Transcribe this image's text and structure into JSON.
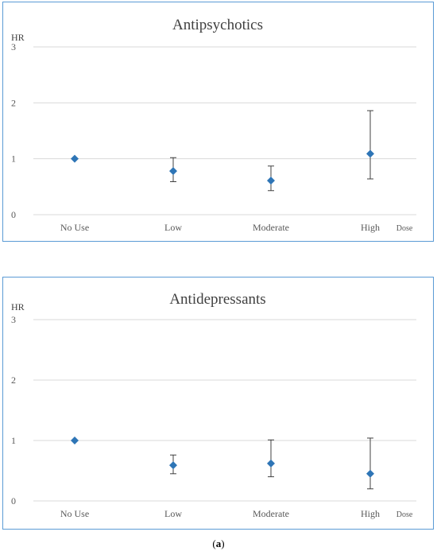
{
  "chart_data": [
    {
      "type": "scatter",
      "title": "Antipsychotics",
      "ylabel": "HR",
      "xlabel": "Dose",
      "categories": [
        "No Use",
        "Low",
        "Moderate",
        "High"
      ],
      "ylim": [
        0,
        3
      ],
      "yticks": [
        "0",
        "1",
        "2",
        "3"
      ],
      "grid": true,
      "series": [
        {
          "values": [
            1.0,
            0.78,
            0.61,
            1.09
          ],
          "lower": [
            1.0,
            0.59,
            0.43,
            0.64
          ],
          "upper": [
            1.0,
            1.02,
            0.87,
            1.86
          ]
        }
      ],
      "color": "#2e75b6"
    },
    {
      "type": "scatter",
      "title": "Antidepressants",
      "ylabel": "HR",
      "xlabel": "Dose",
      "categories": [
        "No Use",
        "Low",
        "Moderate",
        "High"
      ],
      "ylim": [
        0,
        3
      ],
      "yticks": [
        "0",
        "1",
        "2",
        "3"
      ],
      "grid": true,
      "series": [
        {
          "values": [
            1.0,
            0.59,
            0.62,
            0.45
          ],
          "lower": [
            1.0,
            0.45,
            0.4,
            0.2
          ],
          "upper": [
            1.0,
            0.76,
            1.01,
            1.04
          ]
        }
      ],
      "color": "#2e75b6"
    }
  ],
  "caption": {
    "open": "(",
    "label": "a",
    "close": ")"
  }
}
